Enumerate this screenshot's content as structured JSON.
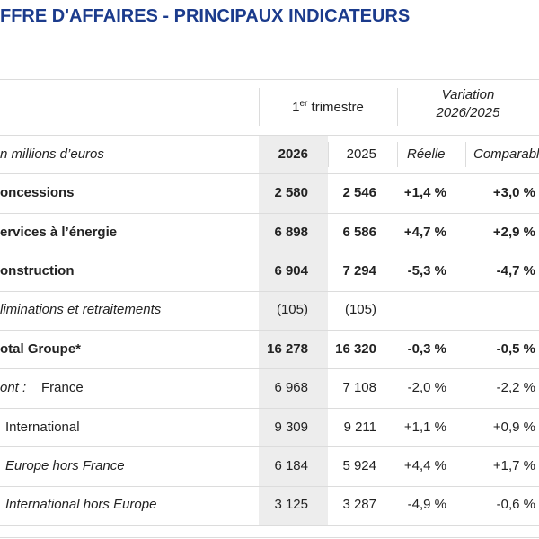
{
  "header": {
    "title": "FFRE D'AFFAIRES - PRINCIPAUX INDICATEURS"
  },
  "table": {
    "group_headers": {
      "period": {
        "number": "1",
        "suffix": "er",
        "text": "trimestre"
      },
      "variation": [
        "Variation",
        "2026/2025"
      ]
    },
    "column_headers": {
      "unit": "n millions d’euros",
      "columns": [
        "2026",
        "2025",
        "Réelle",
        "Comparabl"
      ]
    },
    "rows": [
      {
        "label": "oncessions",
        "bold": true,
        "cells": [
          "2 580",
          "2 546",
          "+1,4 %",
          "+3,0 %"
        ]
      },
      {
        "label": "ervices à l’énergie",
        "bold": true,
        "cells": [
          "6 898",
          "6 586",
          "+4,7 %",
          "+2,9 %"
        ]
      },
      {
        "label": "onstruction",
        "bold": true,
        "cells": [
          "6 904",
          "7 294",
          "-5,3 %",
          "-4,7 %"
        ]
      },
      {
        "label": "liminations et retraitements",
        "italic": true,
        "cells": [
          "(105)",
          "(105)"
        ]
      },
      {
        "label": "otal Groupe*",
        "bold": true,
        "cells": [
          "16 278",
          "16 320",
          "-0,3 %",
          "-0,5 %"
        ]
      },
      {
        "prefix": "ont :",
        "label": "France",
        "cells": [
          "6 968",
          "7 108",
          "-2,0 %",
          "-2,2 %"
        ]
      },
      {
        "label": "International",
        "indent": 1,
        "cells": [
          "9 309",
          "9 211",
          "+1,1 %",
          "+0,9 %"
        ]
      },
      {
        "label": "Europe hors France",
        "italic": true,
        "indent": 1,
        "cells": [
          "6 184",
          "5 924",
          "+4,4 %",
          "+1,7 %"
        ]
      },
      {
        "label": "International hors Europe",
        "italic": true,
        "indent": 1,
        "cells": [
          "3 125",
          "3 287",
          "-4,9 %",
          "-0,6 %"
        ]
      }
    ]
  }
}
